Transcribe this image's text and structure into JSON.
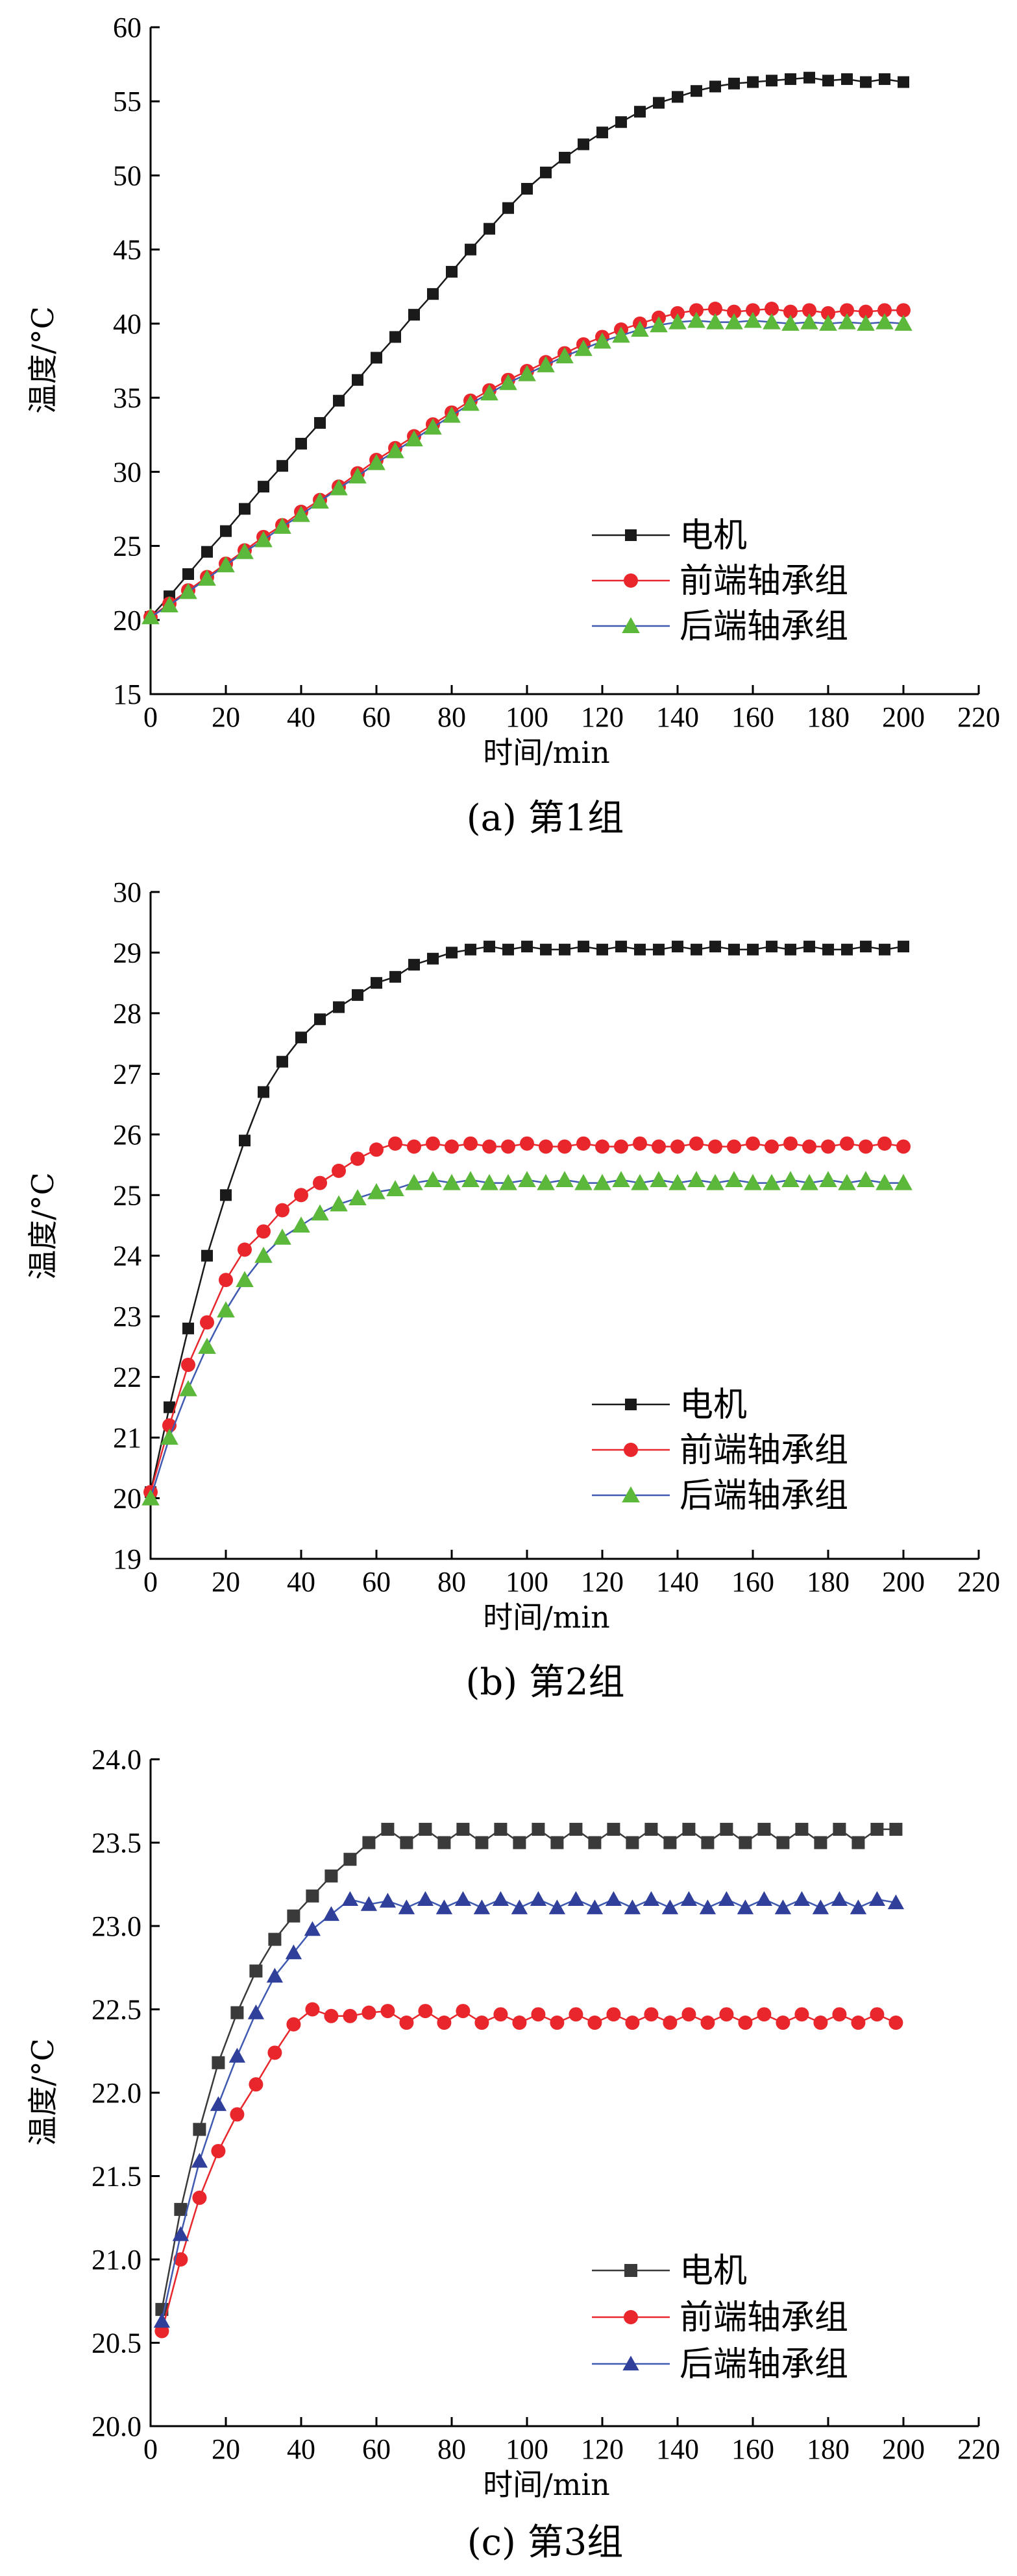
{
  "colors": {
    "motor": "#1a1a1a",
    "front": "#e8262b",
    "rear_marker": "#5cb83a",
    "rear_line": "#3f5ab0",
    "rear_marker_c": "#2f3f9a",
    "motor_c": "#3a3a3a"
  },
  "chart_data": [
    {
      "type": "line",
      "caption": "(a)  第1组",
      "xlabel": "时间/min",
      "ylabel": "温度/°C",
      "xlim": [
        0,
        220
      ],
      "ylim": [
        15,
        60
      ],
      "xticks": [
        0,
        20,
        40,
        60,
        80,
        100,
        120,
        140,
        160,
        180,
        200,
        220
      ],
      "yticks": [
        15,
        20,
        25,
        30,
        35,
        40,
        45,
        50,
        55,
        60
      ],
      "legend": "center-right",
      "x": [
        0,
        5,
        10,
        15,
        20,
        25,
        30,
        35,
        40,
        45,
        50,
        55,
        60,
        65,
        70,
        75,
        80,
        85,
        90,
        95,
        100,
        105,
        110,
        115,
        120,
        125,
        130,
        135,
        140,
        145,
        150,
        155,
        160,
        165,
        170,
        175,
        180,
        185,
        190,
        195,
        200
      ],
      "series": [
        {
          "name": "电机",
          "marker": "square",
          "values": [
            20.2,
            21.6,
            23.1,
            24.6,
            26.0,
            27.5,
            29.0,
            30.4,
            31.9,
            33.3,
            34.8,
            36.2,
            37.7,
            39.1,
            40.6,
            42.0,
            43.5,
            45.0,
            46.4,
            47.8,
            49.1,
            50.2,
            51.2,
            52.1,
            52.9,
            53.6,
            54.3,
            54.9,
            55.3,
            55.7,
            56.0,
            56.2,
            56.3,
            56.4,
            56.5,
            56.6,
            56.4,
            56.5,
            56.3,
            56.5,
            56.3
          ]
        },
        {
          "name": "前端轴承组",
          "marker": "circle",
          "values": [
            20.2,
            21.1,
            22.0,
            22.9,
            23.8,
            24.7,
            25.6,
            26.4,
            27.3,
            28.1,
            29.0,
            29.9,
            30.8,
            31.6,
            32.4,
            33.2,
            34.0,
            34.8,
            35.5,
            36.2,
            36.8,
            37.4,
            38.0,
            38.6,
            39.1,
            39.6,
            40.0,
            40.4,
            40.7,
            40.9,
            41.0,
            40.8,
            40.9,
            41.0,
            40.8,
            40.9,
            40.7,
            40.9,
            40.8,
            40.9,
            40.9
          ]
        },
        {
          "name": "后端轴承组",
          "marker": "triangle",
          "values": [
            20.2,
            21.0,
            21.9,
            22.8,
            23.7,
            24.6,
            25.4,
            26.3,
            27.1,
            28.0,
            28.9,
            29.7,
            30.6,
            31.4,
            32.2,
            33.0,
            33.8,
            34.6,
            35.3,
            36.0,
            36.6,
            37.2,
            37.8,
            38.3,
            38.8,
            39.2,
            39.6,
            39.9,
            40.1,
            40.2,
            40.1,
            40.1,
            40.2,
            40.1,
            40.0,
            40.1,
            40.0,
            40.1,
            40.0,
            40.1,
            40.0
          ]
        }
      ]
    },
    {
      "type": "line",
      "caption": "(b)  第2组",
      "xlabel": "时间/min",
      "ylabel": "温度/°C",
      "xlim": [
        0,
        220
      ],
      "ylim": [
        19,
        30
      ],
      "xticks": [
        0,
        20,
        40,
        60,
        80,
        100,
        120,
        140,
        160,
        180,
        200,
        220
      ],
      "yticks": [
        19,
        20,
        21,
        22,
        23,
        24,
        25,
        26,
        27,
        28,
        29,
        30
      ],
      "legend": "center-right",
      "x": [
        0,
        5,
        10,
        15,
        20,
        25,
        30,
        35,
        40,
        45,
        50,
        55,
        60,
        65,
        70,
        75,
        80,
        85,
        90,
        95,
        100,
        105,
        110,
        115,
        120,
        125,
        130,
        135,
        140,
        145,
        150,
        155,
        160,
        165,
        170,
        175,
        180,
        185,
        190,
        195,
        200
      ],
      "series": [
        {
          "name": "电机",
          "marker": "square",
          "values": [
            20.1,
            21.5,
            22.8,
            24.0,
            25.0,
            25.9,
            26.7,
            27.2,
            27.6,
            27.9,
            28.1,
            28.3,
            28.5,
            28.6,
            28.8,
            28.9,
            29.0,
            29.05,
            29.1,
            29.05,
            29.1,
            29.05,
            29.05,
            29.1,
            29.05,
            29.1,
            29.05,
            29.05,
            29.1,
            29.05,
            29.1,
            29.05,
            29.05,
            29.1,
            29.05,
            29.1,
            29.05,
            29.05,
            29.1,
            29.05,
            29.1
          ]
        },
        {
          "name": "前端轴承组",
          "marker": "circle",
          "values": [
            20.1,
            21.2,
            22.2,
            22.9,
            23.6,
            24.1,
            24.4,
            24.75,
            25.0,
            25.2,
            25.4,
            25.6,
            25.75,
            25.85,
            25.8,
            25.85,
            25.8,
            25.85,
            25.8,
            25.8,
            25.85,
            25.8,
            25.8,
            25.85,
            25.8,
            25.8,
            25.85,
            25.8,
            25.8,
            25.85,
            25.8,
            25.8,
            25.85,
            25.8,
            25.85,
            25.8,
            25.8,
            25.85,
            25.8,
            25.85,
            25.8
          ]
        },
        {
          "name": "后端轴承组",
          "marker": "triangle",
          "values": [
            20.0,
            21.0,
            21.8,
            22.5,
            23.1,
            23.6,
            24.0,
            24.3,
            24.5,
            24.7,
            24.85,
            24.95,
            25.05,
            25.1,
            25.2,
            25.25,
            25.2,
            25.25,
            25.2,
            25.2,
            25.25,
            25.2,
            25.25,
            25.2,
            25.2,
            25.25,
            25.2,
            25.25,
            25.2,
            25.25,
            25.2,
            25.25,
            25.2,
            25.2,
            25.25,
            25.2,
            25.25,
            25.2,
            25.25,
            25.2,
            25.2
          ]
        }
      ]
    },
    {
      "type": "line",
      "caption": "(c)  第3组",
      "xlabel": "时间/min",
      "ylabel": "温度/°C",
      "xlim": [
        0,
        220
      ],
      "ylim": [
        20.0,
        24.0
      ],
      "xticks": [
        0,
        20,
        40,
        60,
        80,
        100,
        120,
        140,
        160,
        180,
        200,
        220
      ],
      "yticks": [
        "20.0",
        "20.5",
        "21.0",
        "21.5",
        "22.0",
        "22.5",
        "23.0",
        "23.5",
        "24.0"
      ],
      "legend": "center-right",
      "x": [
        3,
        8,
        13,
        18,
        23,
        28,
        33,
        38,
        43,
        48,
        53,
        58,
        63,
        68,
        73,
        78,
        83,
        88,
        93,
        98,
        103,
        108,
        113,
        118,
        123,
        128,
        133,
        138,
        143,
        148,
        153,
        158,
        163,
        168,
        173,
        178,
        183,
        188,
        193,
        198
      ],
      "series": [
        {
          "name": "电机",
          "marker": "square",
          "values": [
            20.7,
            21.3,
            21.78,
            22.18,
            22.48,
            22.73,
            22.92,
            23.06,
            23.18,
            23.3,
            23.4,
            23.5,
            23.58,
            23.5,
            23.58,
            23.5,
            23.58,
            23.5,
            23.58,
            23.5,
            23.58,
            23.5,
            23.58,
            23.5,
            23.58,
            23.5,
            23.58,
            23.5,
            23.58,
            23.5,
            23.58,
            23.5,
            23.58,
            23.5,
            23.58,
            23.5,
            23.58,
            23.5,
            23.58,
            23.58
          ]
        },
        {
          "name": "前端轴承组",
          "marker": "circle",
          "values": [
            20.57,
            21.0,
            21.37,
            21.65,
            21.87,
            22.05,
            22.24,
            22.41,
            22.5,
            22.46,
            22.46,
            22.48,
            22.49,
            22.42,
            22.49,
            22.42,
            22.49,
            22.42,
            22.47,
            22.42,
            22.47,
            22.42,
            22.47,
            22.42,
            22.47,
            22.42,
            22.47,
            22.42,
            22.47,
            22.42,
            22.47,
            22.42,
            22.47,
            22.42,
            22.47,
            22.42,
            22.47,
            22.42,
            22.47,
            22.42
          ]
        },
        {
          "name": "后端轴承组",
          "marker": "triangle",
          "values": [
            20.63,
            21.15,
            21.59,
            21.93,
            22.22,
            22.48,
            22.7,
            22.84,
            22.98,
            23.07,
            23.16,
            23.13,
            23.15,
            23.11,
            23.16,
            23.11,
            23.16,
            23.11,
            23.16,
            23.11,
            23.16,
            23.11,
            23.16,
            23.11,
            23.16,
            23.11,
            23.16,
            23.11,
            23.16,
            23.11,
            23.16,
            23.11,
            23.16,
            23.11,
            23.16,
            23.11,
            23.16,
            23.11,
            23.16,
            23.14
          ]
        }
      ]
    }
  ]
}
